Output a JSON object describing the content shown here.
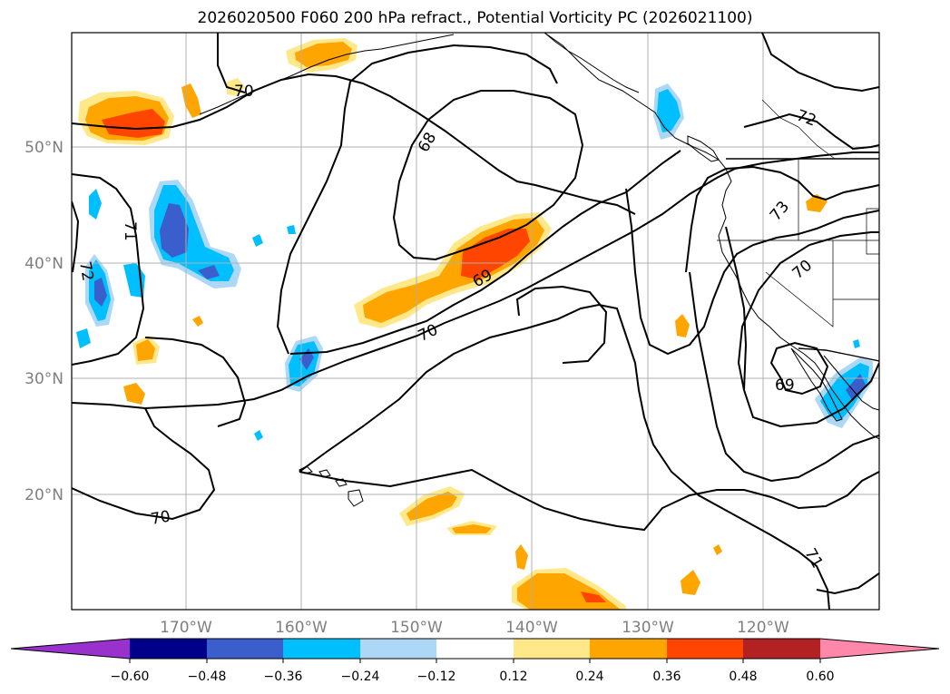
{
  "title": "2026020500 F060 200 hPa refract., Potential Vorticity PC (2026021100)",
  "axes": {
    "lat_labels": [
      "50°N",
      "40°N",
      "30°N",
      "20°N"
    ],
    "lon_labels": [
      "170°W",
      "160°W",
      "150°W",
      "140°W",
      "130°W",
      "120°W"
    ]
  },
  "contour_labels": [
    "70",
    "68",
    "71",
    "72",
    "69",
    "70",
    "72",
    "73",
    "70",
    "69",
    "70",
    "71"
  ],
  "colorbar": {
    "ticks": [
      "−0.60",
      "−0.48",
      "−0.36",
      "−0.24",
      "−0.12",
      "0.12",
      "0.24",
      "0.36",
      "0.48",
      "0.60"
    ],
    "colors": [
      "#9932cc",
      "#00008b",
      "#3a5fcd",
      "#00bfff",
      "#add8f5",
      "#ffffff",
      "#ffe88a",
      "#ffa500",
      "#ff4500",
      "#b22222",
      "#ff88aa"
    ]
  },
  "colors": {
    "orange": "#ffa500",
    "red_orange": "#ff4500",
    "light_yellow": "#ffe88a",
    "deep_sky_blue": "#00bfff",
    "royal_blue": "#3a5fcd",
    "light_blue": "#add8f5",
    "grid": "#b0b0b0",
    "axis_label": "#7f7f7f"
  }
}
